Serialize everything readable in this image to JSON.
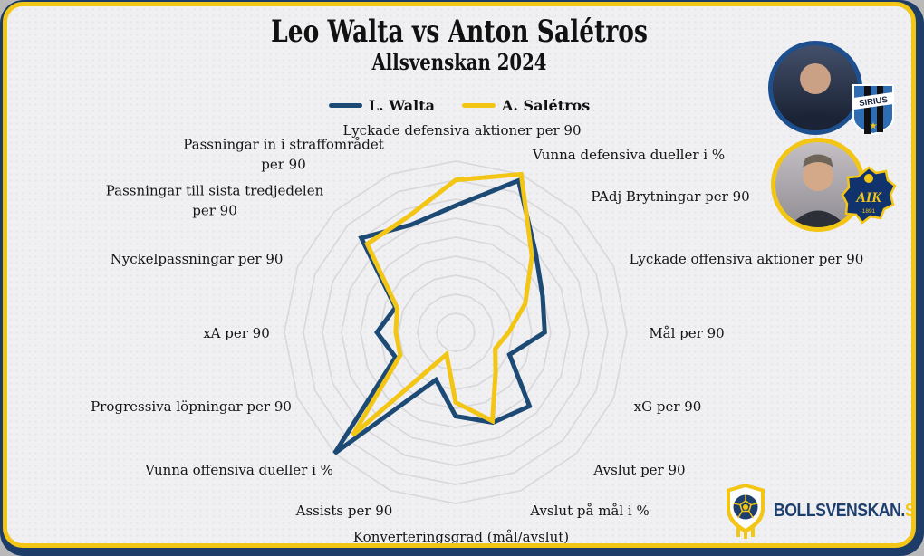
{
  "header": {
    "title": "Leo Walta vs Anton Salétros",
    "subtitle": "Allsvenskan 2024"
  },
  "legend": [
    {
      "label": "L. Walta",
      "color": "#1c4a75"
    },
    {
      "label": "A. Salétros",
      "color": "#f3c515"
    }
  ],
  "chart_data": {
    "type": "radar",
    "title": "Leo Walta vs Anton Salétros",
    "subtitle": "Allsvenskan 2024",
    "categories": [
      "Lyckade defensiva aktioner per 90",
      "Vunna defensiva dueller i %",
      "PAdj Brytningar per 90",
      "Lyckade offensiva aktioner per 90",
      "Mål per 90",
      "xG per 90",
      "Avslut per 90",
      "Avslut på mål i %",
      "Konverteringsgrad (mål/avslut)",
      "Assists per 90",
      "Vunna offensiva dueller i %",
      "Progressiva löpningar per 90",
      "xA per 90",
      "Nyckelpassningar per 90",
      "Passningar till sista tredjedelen per 90",
      "Passningar in i straffområdet per 90"
    ],
    "series": [
      {
        "name": "L. Walta",
        "color": "#1c4a75",
        "values": [
          0.74,
          0.96,
          0.66,
          0.55,
          0.52,
          0.34,
          0.61,
          0.57,
          0.49,
          0.3,
          1.0,
          0.38,
          0.46,
          0.38,
          0.78,
          0.68
        ]
      },
      {
        "name": "A. Salétros",
        "color": "#f3c515",
        "values": [
          0.89,
          1.0,
          0.63,
          0.44,
          0.31,
          0.25,
          0.33,
          0.56,
          0.41,
          0.14,
          0.85,
          0.35,
          0.35,
          0.37,
          0.73,
          0.73
        ]
      }
    ],
    "rings": 9,
    "scale": "0-1 fraction of chart maximum radius",
    "grid": true,
    "grid_color": "#d8d8da",
    "legend_position": "top"
  },
  "players": [
    {
      "badge": "SIRIUS",
      "ring_color": "#1d4f8f",
      "badge_star": "★"
    },
    {
      "badge": "AIK",
      "ring_color": "#f3c515",
      "badge_year": "1891"
    }
  ],
  "footer": {
    "brand_main": "BOLLSVENSKAN.",
    "brand_suffix": "SE",
    "brand_navy": "#1d3f6e",
    "brand_yellow": "#f3c515"
  }
}
